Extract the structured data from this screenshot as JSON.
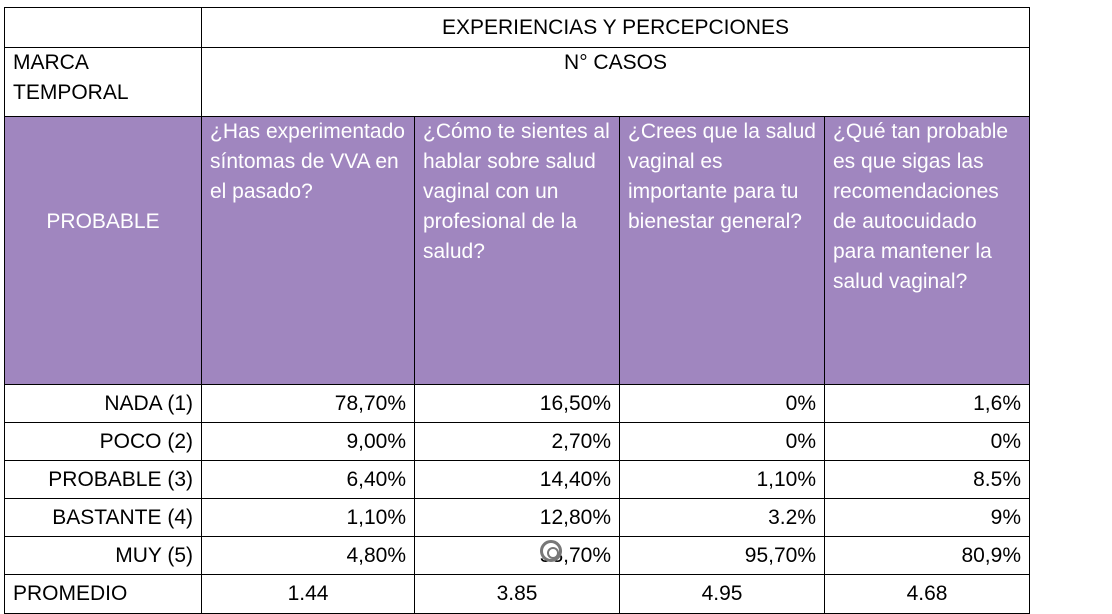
{
  "title": "EXPERIENCIAS Y PERCEPCIONES",
  "row_header": "MARCA TEMPORAL",
  "subtitle": "N° CASOS",
  "scale_label": "PROBABLE",
  "questions": [
    "¿Has experimentado síntomas de VVA en el pasado?",
    "¿Cómo te sientes al hablar sobre salud vaginal con un profesional de la salud?",
    "¿Crees que la salud vaginal es importante para tu bienestar general?",
    "¿Qué tan probable es que sigas las recomendaciones de autocuidado para mantener la salud vaginal?"
  ],
  "rows": [
    {
      "label": "NADA (1)",
      "values": [
        "78,70%",
        "16,50%",
        "0%",
        "1,6%"
      ]
    },
    {
      "label": "POCO (2)",
      "values": [
        "9,00%",
        "2,70%",
        "0%",
        "0%"
      ]
    },
    {
      "label": "PROBABLE (3)",
      "values": [
        "6,40%",
        "14,40%",
        "1,10%",
        "8.5%"
      ]
    },
    {
      "label": "BASTANTE (4)",
      "values": [
        "1,10%",
        "12,80%",
        "3.2%",
        "9%"
      ]
    },
    {
      "label": "MUY (5)",
      "values": [
        "4,80%",
        "53,70%",
        "95,70%",
        "80,9%"
      ]
    }
  ],
  "average": {
    "label": "PROMEDIO",
    "values": [
      "1.44",
      "3.85",
      "4.95",
      "4.68"
    ]
  },
  "colors": {
    "header_purple": "#a086bf"
  }
}
